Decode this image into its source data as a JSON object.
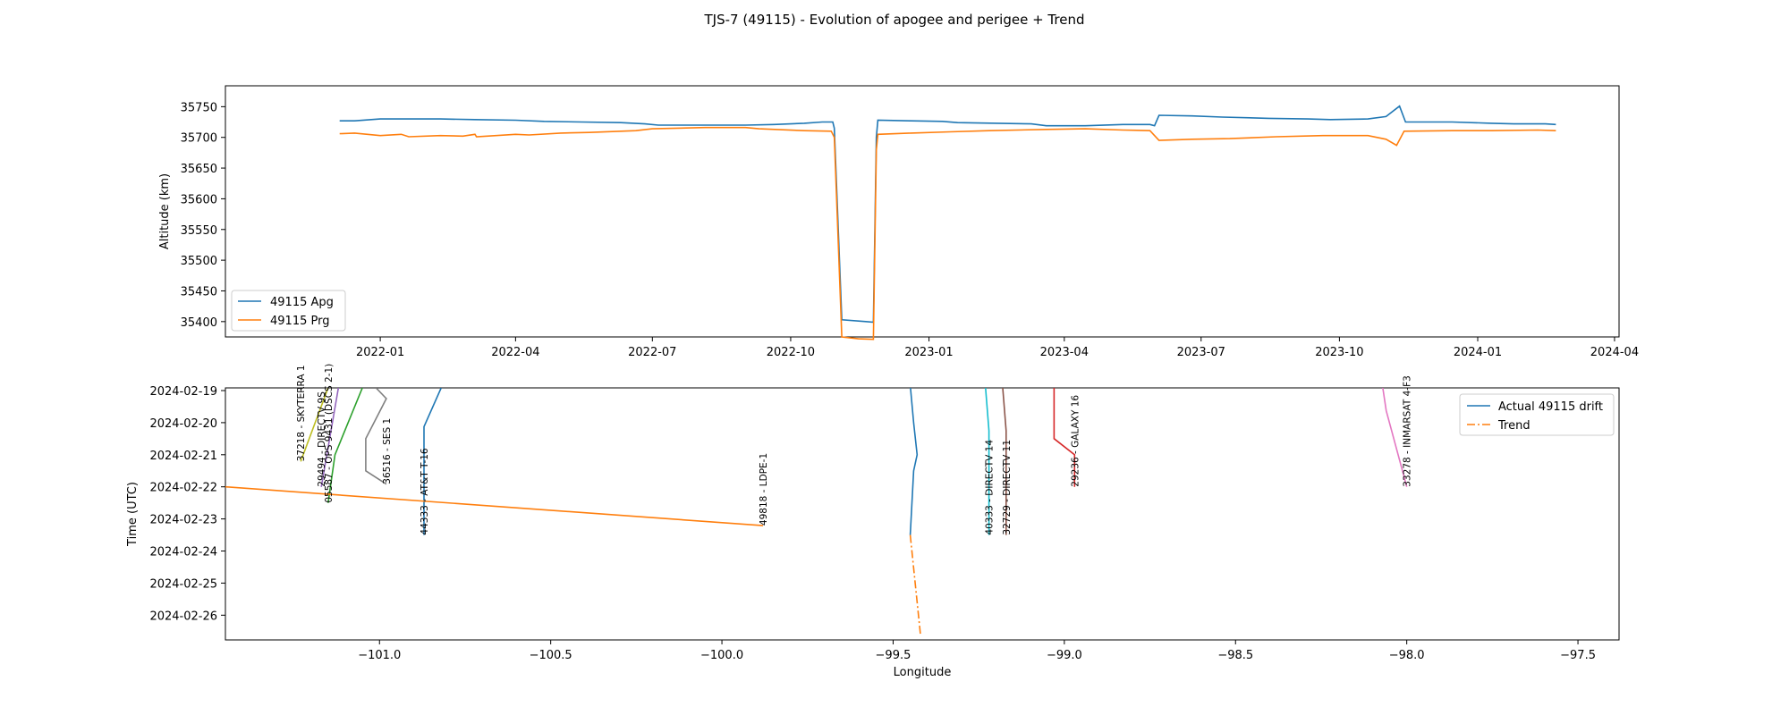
{
  "figure_title": "TJS-7 (49115) - Evolution of apogee and perigee + Trend",
  "colors": {
    "apogee": "#1f77b4",
    "perigee": "#ff7f0e",
    "trend": "#ff7f0e",
    "sat_37218": "#bcbd22",
    "sat_29494": "#9467bd",
    "sat_05587": "#2ca02c",
    "sat_36516": "#7f7f7f",
    "sat_44333": "#1f77b4",
    "sat_49818": "#ff7f0e",
    "sat_40333": "#17becf",
    "sat_32729": "#8c564b",
    "sat_29236": "#d62728",
    "sat_33278": "#e377c2"
  },
  "chart_data": [
    {
      "type": "line",
      "title": "",
      "xlabel": "",
      "ylabel": "Altitude (km)",
      "x_ticks": [
        "2022-01",
        "2022-04",
        "2022-07",
        "2022-10",
        "2023-01",
        "2023-04",
        "2023-07",
        "2023-10",
        "2024-01",
        "2024-04"
      ],
      "x_range": [
        "2021-09-20",
        "2024-04-04"
      ],
      "y_ticks": [
        35400,
        35450,
        35500,
        35550,
        35600,
        35650,
        35700,
        35750
      ],
      "ylim": [
        35375,
        35784
      ],
      "legend": {
        "placement": "lower-left",
        "entries": [
          "49115 Apg",
          "49115 Prg"
        ]
      },
      "grid": false,
      "series": [
        {
          "name": "49115 Apg",
          "color_key": "apogee",
          "points": [
            [
              "2021-12-05",
              35727
            ],
            [
              "2021-12-15",
              35727
            ],
            [
              "2022-01-01",
              35730
            ],
            [
              "2022-01-20",
              35730
            ],
            [
              "2022-02-10",
              35730
            ],
            [
              "2022-03-05",
              35729
            ],
            [
              "2022-04-01",
              35728
            ],
            [
              "2022-04-20",
              35726
            ],
            [
              "2022-05-15",
              35725
            ],
            [
              "2022-06-10",
              35724
            ],
            [
              "2022-06-26",
              35722
            ],
            [
              "2022-07-05",
              35720
            ],
            [
              "2022-08-05",
              35720
            ],
            [
              "2022-09-01",
              35720
            ],
            [
              "2022-09-20",
              35721
            ],
            [
              "2022-10-10",
              35723
            ],
            [
              "2022-10-22",
              35725
            ],
            [
              "2022-10-29",
              35725
            ],
            [
              "2022-10-30",
              35715
            ],
            [
              "2022-11-04",
              35403
            ],
            [
              "2022-11-20",
              35400
            ],
            [
              "2022-11-25",
              35399
            ],
            [
              "2022-11-27",
              35700
            ],
            [
              "2022-11-28",
              35728
            ],
            [
              "2022-12-20",
              35727
            ],
            [
              "2023-01-10",
              35726
            ],
            [
              "2023-01-20",
              35724
            ],
            [
              "2023-02-15",
              35723
            ],
            [
              "2023-03-10",
              35722
            ],
            [
              "2023-03-20",
              35719
            ],
            [
              "2023-04-15",
              35719
            ],
            [
              "2023-05-10",
              35721
            ],
            [
              "2023-05-28",
              35721
            ],
            [
              "2023-05-31",
              35719
            ],
            [
              "2023-06-03",
              35736
            ],
            [
              "2023-06-25",
              35735
            ],
            [
              "2023-07-15",
              35733
            ],
            [
              "2023-08-15",
              35731
            ],
            [
              "2023-09-10",
              35730
            ],
            [
              "2023-09-25",
              35729
            ],
            [
              "2023-10-20",
              35730
            ],
            [
              "2023-11-01",
              35734
            ],
            [
              "2023-11-10",
              35751
            ],
            [
              "2023-11-14",
              35725
            ],
            [
              "2023-12-15",
              35725
            ],
            [
              "2024-01-10",
              35723
            ],
            [
              "2024-01-25",
              35722
            ],
            [
              "2024-02-15",
              35722
            ],
            [
              "2024-02-22",
              35721
            ]
          ]
        },
        {
          "name": "49115 Prg",
          "color_key": "perigee",
          "points": [
            [
              "2021-12-05",
              35706
            ],
            [
              "2021-12-15",
              35707
            ],
            [
              "2022-01-01",
              35703
            ],
            [
              "2022-01-15",
              35705
            ],
            [
              "2022-01-20",
              35701
            ],
            [
              "2022-02-10",
              35703
            ],
            [
              "2022-02-25",
              35702
            ],
            [
              "2022-03-05",
              35705
            ],
            [
              "2022-03-06",
              35701
            ],
            [
              "2022-04-01",
              35705
            ],
            [
              "2022-04-10",
              35704
            ],
            [
              "2022-05-01",
              35707
            ],
            [
              "2022-05-20",
              35708
            ],
            [
              "2022-06-20",
              35711
            ],
            [
              "2022-07-01",
              35714
            ],
            [
              "2022-08-05",
              35716
            ],
            [
              "2022-09-01",
              35716
            ],
            [
              "2022-09-10",
              35714
            ],
            [
              "2022-10-10",
              35711
            ],
            [
              "2022-10-28",
              35710
            ],
            [
              "2022-10-30",
              35700
            ],
            [
              "2022-11-04",
              35375
            ],
            [
              "2022-11-15",
              35372
            ],
            [
              "2022-11-25",
              35371
            ],
            [
              "2022-11-27",
              35680
            ],
            [
              "2022-11-28",
              35705
            ],
            [
              "2022-12-20",
              35707
            ],
            [
              "2023-01-15",
              35709
            ],
            [
              "2023-02-10",
              35711
            ],
            [
              "2023-03-20",
              35713
            ],
            [
              "2023-04-15",
              35714
            ],
            [
              "2023-05-10",
              35712
            ],
            [
              "2023-05-28",
              35711
            ],
            [
              "2023-06-03",
              35695
            ],
            [
              "2023-06-25",
              35697
            ],
            [
              "2023-07-20",
              35698
            ],
            [
              "2023-08-20",
              35701
            ],
            [
              "2023-09-20",
              35703
            ],
            [
              "2023-10-20",
              35703
            ],
            [
              "2023-11-01",
              35697
            ],
            [
              "2023-11-08",
              35687
            ],
            [
              "2023-11-13",
              35710
            ],
            [
              "2023-12-15",
              35711
            ],
            [
              "2024-01-10",
              35711
            ],
            [
              "2024-02-10",
              35712
            ],
            [
              "2024-02-22",
              35711
            ]
          ]
        }
      ]
    },
    {
      "type": "line",
      "title": "",
      "xlabel": "Longitude",
      "ylabel": "Time (UTC)",
      "x_ticks": [
        -101.0,
        -100.5,
        -100.0,
        -99.5,
        -99.0,
        -98.5,
        -98.0,
        -97.5
      ],
      "x_tick_labels": [
        "−101.0",
        "−100.5",
        "−100.0",
        "−99.5",
        "−99.0",
        "−98.5",
        "−98.0",
        "−97.5"
      ],
      "xlim": [
        -101.45,
        -97.38
      ],
      "y_ticks": [
        "2024-02-19",
        "2024-02-20",
        "2024-02-21",
        "2024-02-22",
        "2024-02-23",
        "2024-02-24",
        "2024-02-25",
        "2024-02-26"
      ],
      "ylim_days": [
        "2024-02-18 22:00",
        "2024-02-26 18:30"
      ],
      "legend": {
        "placement": "upper-right",
        "entries": [
          "Actual 49115 drift",
          "Trend"
        ]
      },
      "grid": false,
      "series": [
        {
          "name": "Actual 49115 drift",
          "color_key": "apogee",
          "style": "solid",
          "points": [
            [
              -99.45,
              "2024-02-18 20:00"
            ],
            [
              -99.44,
              "2024-02-20 00:00"
            ],
            [
              -99.43,
              "2024-02-21 00:00"
            ],
            [
              -99.44,
              "2024-02-21 12:00"
            ],
            [
              -99.45,
              "2024-02-23 12:00"
            ]
          ]
        },
        {
          "name": "Trend",
          "color_key": "trend",
          "style": "dashdot",
          "points": [
            [
              -99.45,
              "2024-02-23 12:00"
            ],
            [
              -99.42,
              "2024-02-26 15:00"
            ]
          ]
        },
        {
          "name": "",
          "color_key": "trend",
          "style": "solid",
          "points": [
            [
              -101.45,
              "2024-02-22 00:00"
            ],
            [
              -99.88,
              "2024-02-23 05:00"
            ]
          ]
        }
      ],
      "neighbors": [
        {
          "label": "37218 - SKYTERRA 1",
          "color_key": "sat_37218",
          "points": [
            [
              -101.23,
              "2024-02-21 05:00"
            ],
            [
              -101.15,
              "2024-02-18 22:00"
            ]
          ]
        },
        {
          "label": "29494 - DIRECTV 9S",
          "color_key": "sat_29494",
          "points": [
            [
              -101.17,
              "2024-02-22 00:00"
            ],
            [
              -101.12,
              "2024-02-18 22:00"
            ]
          ]
        },
        {
          "label": "05587 - OPS 9431 (DSCS 2-1)",
          "color_key": "sat_05587",
          "points": [
            [
              -101.15,
              "2024-02-22 12:00"
            ],
            [
              -101.13,
              "2024-02-21 00:00"
            ],
            [
              -101.05,
              "2024-02-18 22:00"
            ]
          ]
        },
        {
          "label": "36516 - SES 1",
          "color_key": "sat_36516",
          "points": [
            [
              -100.98,
              "2024-02-21 22:00"
            ],
            [
              -101.04,
              "2024-02-21 12:00"
            ],
            [
              -101.04,
              "2024-02-20 12:00"
            ],
            [
              -100.98,
              "2024-02-19 06:00"
            ],
            [
              -101.01,
              "2024-02-18 22:00"
            ]
          ]
        },
        {
          "label": "44333 - AT&T T-16",
          "color_key": "sat_44333",
          "points": [
            [
              -100.87,
              "2024-02-23 12:00"
            ],
            [
              -100.87,
              "2024-02-20 03:00"
            ],
            [
              -100.82,
              "2024-02-18 22:00"
            ]
          ]
        },
        {
          "label": "49818 - LDPE-1",
          "color_key": "sat_49818",
          "points": [
            [
              -99.88,
              "2024-02-23 05:00"
            ],
            [
              -99.88,
              "2024-02-23 05:00"
            ]
          ]
        },
        {
          "label": "40333 - DIRECTV 14",
          "color_key": "sat_40333",
          "points": [
            [
              -99.22,
              "2024-02-23 12:00"
            ],
            [
              -99.22,
              "2024-02-20 06:00"
            ],
            [
              -99.23,
              "2024-02-18 22:00"
            ]
          ]
        },
        {
          "label": "32729 - DIRECTV 11",
          "color_key": "sat_32729",
          "points": [
            [
              -99.17,
              "2024-02-23 12:00"
            ],
            [
              -99.17,
              "2024-02-20 06:00"
            ],
            [
              -99.18,
              "2024-02-18 22:00"
            ]
          ]
        },
        {
          "label": "29236 - GALAXY 16",
          "color_key": "sat_29236",
          "points": [
            [
              -98.97,
              "2024-02-22 00:00"
            ],
            [
              -98.97,
              "2024-02-21 00:00"
            ],
            [
              -99.03,
              "2024-02-20 12:00"
            ],
            [
              -99.03,
              "2024-02-18 22:00"
            ]
          ]
        },
        {
          "label": "33278 - INMARSAT 4-F3",
          "color_key": "sat_33278",
          "points": [
            [
              -98.0,
              "2024-02-22 00:00"
            ],
            [
              -98.06,
              "2024-02-19 15:00"
            ],
            [
              -98.07,
              "2024-02-18 22:00"
            ]
          ]
        }
      ]
    }
  ]
}
